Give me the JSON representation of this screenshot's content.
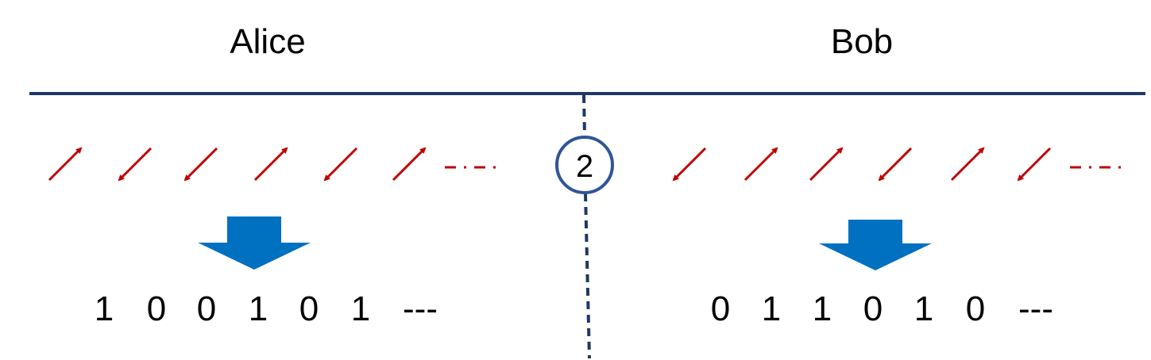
{
  "parties": {
    "alice": {
      "name": "Alice",
      "photons": [
        "up-right",
        "down-left",
        "down-left",
        "up-right",
        "down-left",
        "up-right"
      ],
      "bits": [
        "1",
        "0",
        "0",
        "1",
        "0",
        "1"
      ],
      "ellipsis": "---"
    },
    "bob": {
      "name": "Bob",
      "photons": [
        "down-left",
        "up-right",
        "up-right",
        "down-left",
        "up-right",
        "down-left"
      ],
      "bits": [
        "0",
        "1",
        "1",
        "0",
        "1",
        "0"
      ],
      "ellipsis": "---"
    }
  },
  "step": {
    "number": "2"
  },
  "colors": {
    "divider": "#1f3864",
    "photon": "#c00000",
    "measure_arrow": "#0070c0",
    "step_circle": "#2f5597",
    "text": "#000000"
  }
}
